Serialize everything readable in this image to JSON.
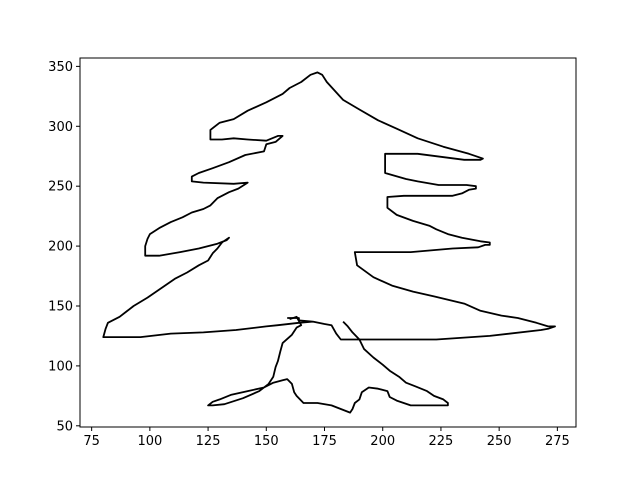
{
  "chart_data": {
    "type": "line",
    "title": "",
    "xlabel": "",
    "ylabel": "",
    "xlim": [
      70,
      283
    ],
    "ylim": [
      49,
      357
    ],
    "x_ticks": [
      75,
      100,
      125,
      150,
      175,
      200,
      225,
      250,
      275
    ],
    "y_ticks": [
      50,
      100,
      150,
      200,
      250,
      300,
      350
    ],
    "grid": false,
    "colors": {
      "line": "#000000",
      "axes": "#000000",
      "background": "#ffffff"
    },
    "series": [
      {
        "points": [
          [
            159,
            140
          ],
          [
            164,
            140
          ],
          [
            164,
            138
          ],
          [
            170,
            137
          ],
          [
            175,
            135
          ],
          [
            178,
            134
          ],
          [
            180,
            127
          ],
          [
            182,
            122
          ],
          [
            190,
            122
          ],
          [
            223,
            122
          ],
          [
            246,
            125
          ],
          [
            268,
            130
          ],
          [
            271,
            131
          ],
          [
            274,
            133
          ],
          [
            271,
            133
          ],
          [
            266,
            136
          ],
          [
            258,
            140
          ],
          [
            251,
            142
          ],
          [
            242,
            146
          ],
          [
            235,
            152
          ],
          [
            222,
            158
          ],
          [
            213,
            162
          ],
          [
            204,
            167
          ],
          [
            196,
            174
          ],
          [
            189,
            184
          ],
          [
            188,
            195
          ],
          [
            212,
            195
          ],
          [
            230,
            198
          ],
          [
            241,
            199
          ],
          [
            244,
            201
          ],
          [
            246,
            201
          ],
          [
            246,
            203
          ],
          [
            242,
            204
          ],
          [
            234,
            207
          ],
          [
            228,
            210
          ],
          [
            223,
            214
          ],
          [
            220,
            217
          ],
          [
            213,
            221
          ],
          [
            206,
            226
          ],
          [
            202,
            232
          ],
          [
            202,
            241
          ],
          [
            209,
            242
          ],
          [
            230,
            242
          ],
          [
            234,
            244
          ],
          [
            237,
            247
          ],
          [
            240,
            248
          ],
          [
            240,
            250
          ],
          [
            236,
            251
          ],
          [
            224,
            251
          ],
          [
            215,
            254
          ],
          [
            210,
            256
          ],
          [
            201,
            261
          ],
          [
            201,
            277
          ],
          [
            215,
            277
          ],
          [
            235,
            272
          ],
          [
            242,
            272
          ],
          [
            243,
            273
          ],
          [
            240,
            275
          ],
          [
            237,
            277
          ],
          [
            226,
            283
          ],
          [
            215,
            290
          ],
          [
            206,
            298
          ],
          [
            198,
            305
          ],
          [
            190,
            314
          ],
          [
            183,
            322
          ],
          [
            176,
            337
          ],
          [
            174,
            343
          ],
          [
            172,
            345
          ],
          [
            169,
            343
          ],
          [
            165,
            337
          ],
          [
            160,
            332
          ],
          [
            157,
            327
          ],
          [
            150,
            320
          ],
          [
            142,
            313
          ],
          [
            136,
            306
          ],
          [
            130,
            303
          ],
          [
            126,
            297
          ],
          [
            126,
            289
          ],
          [
            131,
            289
          ],
          [
            136,
            290
          ],
          [
            142,
            289
          ],
          [
            150,
            288
          ],
          [
            155,
            292
          ],
          [
            157,
            292
          ],
          [
            154,
            287
          ],
          [
            150,
            285
          ],
          [
            149,
            279
          ],
          [
            141,
            276
          ],
          [
            134,
            270
          ],
          [
            127,
            265
          ],
          [
            121,
            261
          ],
          [
            118,
            258
          ],
          [
            118,
            254
          ],
          [
            123,
            253
          ],
          [
            136,
            252
          ],
          [
            142,
            253
          ],
          [
            138,
            248
          ],
          [
            134,
            245
          ],
          [
            129,
            240
          ],
          [
            126,
            234
          ],
          [
            123,
            231
          ],
          [
            118,
            228
          ],
          [
            114,
            224
          ],
          [
            109,
            220
          ],
          [
            104,
            215
          ],
          [
            100,
            210
          ],
          [
            99,
            206
          ],
          [
            98,
            200
          ],
          [
            98,
            192
          ],
          [
            104,
            192
          ],
          [
            113,
            195
          ],
          [
            121,
            198
          ],
          [
            129,
            202
          ],
          [
            133,
            205
          ],
          [
            134,
            207
          ],
          [
            131,
            203
          ],
          [
            129,
            198
          ],
          [
            127,
            194
          ],
          [
            125,
            188
          ],
          [
            121,
            184
          ],
          [
            116,
            178
          ],
          [
            111,
            173
          ],
          [
            105,
            165
          ],
          [
            99,
            157
          ],
          [
            93,
            150
          ],
          [
            87,
            141
          ],
          [
            82,
            136
          ],
          [
            81,
            131
          ],
          [
            80,
            124
          ],
          [
            96,
            124
          ],
          [
            109,
            127
          ],
          [
            123,
            128
          ],
          [
            137,
            130
          ],
          [
            150,
            133
          ],
          [
            155,
            134
          ],
          [
            164,
            136
          ],
          [
            170,
            137
          ]
        ]
      },
      {
        "points": [
          [
            183,
            137
          ],
          [
            185,
            133
          ],
          [
            187,
            128
          ],
          [
            190,
            122
          ],
          [
            192,
            114
          ],
          [
            196,
            107
          ],
          [
            200,
            101
          ],
          [
            203,
            96
          ],
          [
            207,
            91
          ],
          [
            210,
            86
          ],
          [
            214,
            83
          ],
          [
            219,
            79
          ],
          [
            222,
            75
          ],
          [
            226,
            72
          ],
          [
            228,
            69
          ],
          [
            228,
            67
          ],
          [
            222,
            67
          ],
          [
            212,
            67
          ],
          [
            206,
            71
          ],
          [
            203,
            74
          ],
          [
            202,
            79
          ],
          [
            198,
            81
          ],
          [
            194,
            82
          ],
          [
            191,
            78
          ],
          [
            190,
            72
          ],
          [
            188,
            69
          ],
          [
            187,
            64
          ],
          [
            186,
            61
          ],
          [
            182,
            64
          ],
          [
            178,
            67
          ],
          [
            172,
            69
          ],
          [
            166,
            69
          ],
          [
            163,
            75
          ],
          [
            162,
            78
          ],
          [
            161,
            85
          ],
          [
            159,
            89
          ],
          [
            157,
            88
          ],
          [
            153,
            86
          ],
          [
            149,
            82
          ],
          [
            142,
            79
          ],
          [
            135,
            76
          ],
          [
            130,
            72
          ],
          [
            127,
            70
          ],
          [
            125,
            67
          ],
          [
            127,
            67
          ],
          [
            132,
            68
          ],
          [
            140,
            73
          ],
          [
            147,
            79
          ],
          [
            151,
            85
          ],
          [
            153,
            91
          ],
          [
            154,
            99
          ],
          [
            155,
            104
          ],
          [
            156,
            112
          ],
          [
            157,
            119
          ],
          [
            161,
            126
          ],
          [
            163,
            132
          ],
          [
            165,
            134
          ],
          [
            163,
            141
          ],
          [
            160,
            139
          ]
        ]
      }
    ]
  }
}
